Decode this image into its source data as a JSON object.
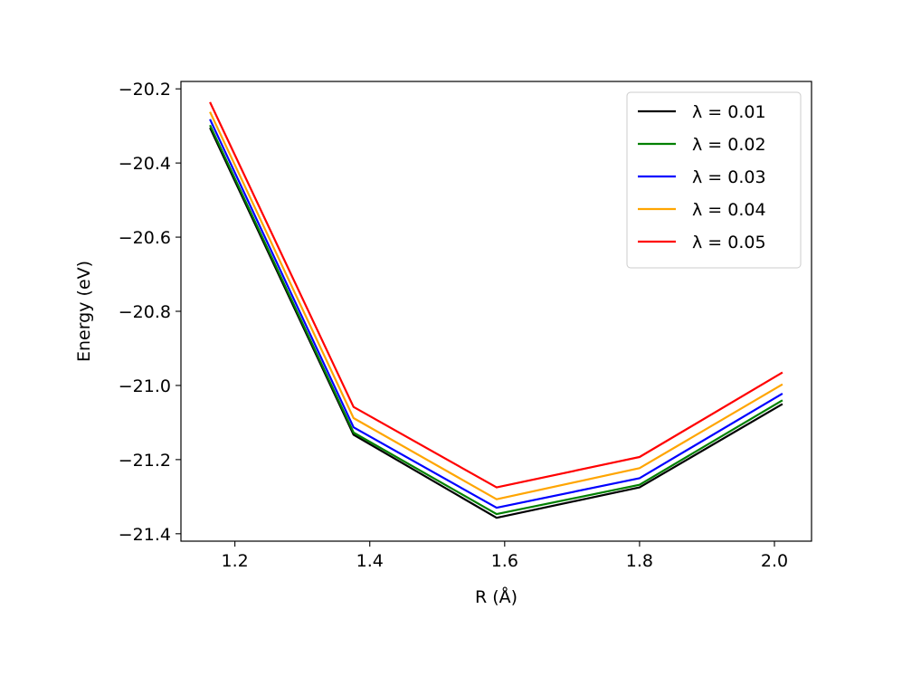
{
  "chart_data": {
    "type": "line",
    "title": "",
    "xlabel": "R (Å)",
    "ylabel": "Energy (eV)",
    "x": [
      1.163,
      1.376,
      1.588,
      1.8,
      2.012
    ],
    "xlim": [
      1.12,
      2.055
    ],
    "ylim": [
      -21.42,
      -20.18
    ],
    "xticks": [
      1.2,
      1.4,
      1.6,
      1.8,
      2.0
    ],
    "xtick_labels": [
      "1.2",
      "1.4",
      "1.6",
      "1.8",
      "2.0"
    ],
    "yticks": [
      -20.2,
      -20.4,
      -20.6,
      -20.8,
      -21.0,
      -21.2,
      -21.4
    ],
    "ytick_labels": [
      "−20.2",
      "−20.4",
      "−20.6",
      "−20.8",
      "−21.0",
      "−21.2",
      "−21.4"
    ],
    "grid": false,
    "legend_position": "top-right",
    "series": [
      {
        "name": "λ = 0.01",
        "color": "#000000",
        "values": [
          -20.305,
          -21.133,
          -21.357,
          -21.275,
          -21.05
        ]
      },
      {
        "name": "λ = 0.02",
        "color": "#008000",
        "values": [
          -20.298,
          -21.127,
          -21.347,
          -21.268,
          -21.04
        ]
      },
      {
        "name": "λ = 0.03",
        "color": "#0000ff",
        "values": [
          -20.282,
          -21.113,
          -21.33,
          -21.25,
          -21.022
        ]
      },
      {
        "name": "λ = 0.04",
        "color": "#ffa500",
        "values": [
          -20.262,
          -21.088,
          -21.307,
          -21.223,
          -20.997
        ]
      },
      {
        "name": "λ = 0.05",
        "color": "#ff0000",
        "values": [
          -20.236,
          -21.058,
          -21.275,
          -21.193,
          -20.965
        ]
      }
    ]
  }
}
